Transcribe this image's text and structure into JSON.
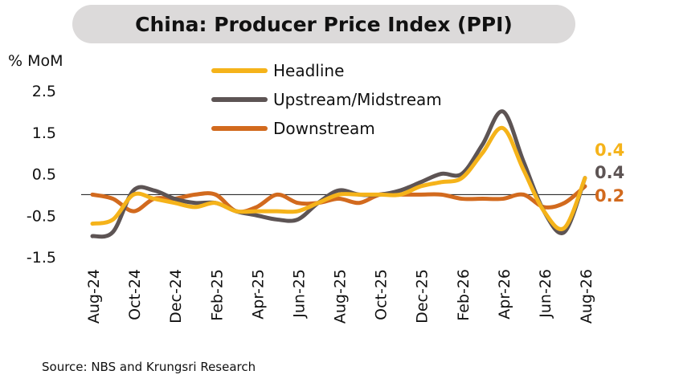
{
  "chart_data": {
    "type": "line",
    "title": "China: Producer Price Index (PPI)",
    "ylabel": "% MoM",
    "ylim": [
      -1.5,
      2.5
    ],
    "yticks": [
      "2.5",
      "1.5",
      "0.5",
      "-0.5",
      "-1.5"
    ],
    "ytick_values": [
      2.5,
      1.5,
      0.5,
      -0.5,
      -1.5
    ],
    "categories": [
      "Aug-24",
      "Sep-24",
      "Oct-24",
      "Nov-24",
      "Dec-24",
      "Jan-25",
      "Feb-25",
      "Mar-25",
      "Apr-25",
      "May-25",
      "Jun-25",
      "Jul-25",
      "Aug-25",
      "Sep-25",
      "Oct-25",
      "Nov-25",
      "Dec-25",
      "Jan-26",
      "Feb-26",
      "Mar-26",
      "Apr-26",
      "May-26",
      "Jun-26",
      "Jul-26",
      "Aug-26"
    ],
    "xtick_labels": [
      "Aug-24",
      "Oct-24",
      "Dec-24",
      "Feb-25",
      "Apr-25",
      "Jun-25",
      "Aug-25",
      "Oct-25",
      "Dec-25",
      "Feb-26",
      "Apr-26",
      "Jun-26",
      "Aug-26"
    ],
    "legend_position": "top-center",
    "series": [
      {
        "name": "Headline",
        "color": "#f5b31a",
        "values": [
          -0.7,
          -0.6,
          0.0,
          -0.1,
          -0.2,
          -0.3,
          -0.2,
          -0.4,
          -0.4,
          -0.4,
          -0.4,
          -0.2,
          0.0,
          0.0,
          0.0,
          0.0,
          0.2,
          0.3,
          0.4,
          1.0,
          1.6,
          0.6,
          -0.4,
          -0.8,
          0.4
        ],
        "end_label": "0.4"
      },
      {
        "name": "Upstream/Midstream",
        "color": "#5d5454",
        "values": [
          -1.0,
          -0.9,
          0.1,
          0.1,
          -0.1,
          -0.2,
          -0.2,
          -0.4,
          -0.5,
          -0.6,
          -0.6,
          -0.2,
          0.1,
          0.0,
          0.0,
          0.1,
          0.3,
          0.5,
          0.5,
          1.2,
          2.0,
          0.8,
          -0.4,
          -0.9,
          0.4
        ],
        "end_label": "0.4"
      },
      {
        "name": "Downstream",
        "color": "#d26a1e",
        "values": [
          0.0,
          -0.1,
          -0.4,
          -0.1,
          -0.1,
          0.0,
          0.0,
          -0.4,
          -0.3,
          0.0,
          -0.2,
          -0.2,
          -0.1,
          -0.2,
          0.0,
          0.0,
          0.0,
          0.0,
          -0.1,
          -0.1,
          -0.1,
          0.0,
          -0.3,
          -0.2,
          0.2
        ],
        "end_label": "0.2"
      }
    ],
    "zero_line": true,
    "grid": false
  },
  "source_note": "Source: NBS and Krungsri Research"
}
